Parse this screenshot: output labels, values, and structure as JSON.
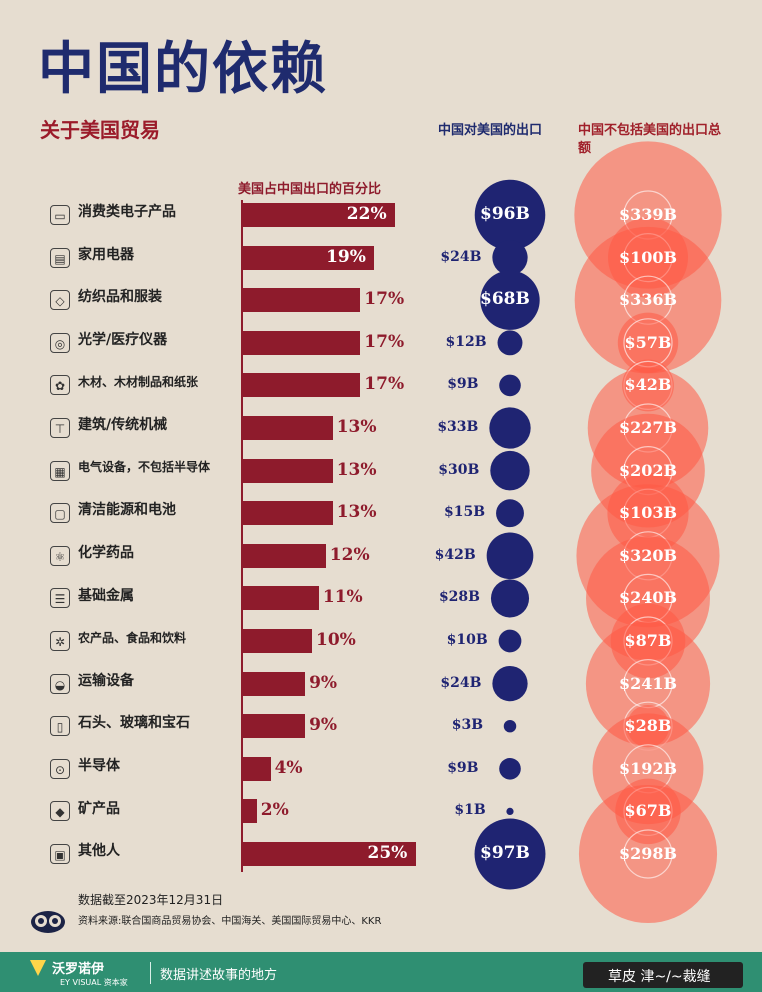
{
  "title": "中国的依赖",
  "subtitle": "关于美国贸易",
  "headers": {
    "bar": "美国占中国出口的百分比",
    "us": "中国对美国的出口",
    "world": "中国不包括美国的出口总额"
  },
  "colors": {
    "bar": "#8e1b2c",
    "us": "#1f2472",
    "world": "#ff5a45",
    "title": "#1f2b6e"
  },
  "chart_data": {
    "type": "bar",
    "title": "中国的依赖",
    "subtitle": "关于美国贸易",
    "value_unit": "%",
    "categories": [
      "消费类电子产品",
      "家用电器",
      "纺织品和服装",
      "光学/医疗仪器",
      "木材、木材制品和纸张",
      "建筑/传统机械",
      "电气设备，不包括半导体",
      "清洁能源和电池",
      "化学药品",
      "基础金属",
      "农产品、食品和饮料",
      "运输设备",
      "石头、玻璃和宝石",
      "半导体",
      "矿产品",
      "其他人"
    ],
    "icons": [
      "monitor-icon",
      "appliance-icon",
      "shirt-icon",
      "microscope-icon",
      "wood-icon",
      "crane-icon",
      "circuit-icon",
      "battery-icon",
      "atom-icon",
      "metal-bars-icon",
      "wheat-icon",
      "car-icon",
      "glass-icon",
      "chip-icon",
      "rock-icon",
      "box-icon"
    ],
    "series": [
      {
        "name": "美国占中国出口的百分比",
        "values": [
          22,
          19,
          17,
          17,
          17,
          13,
          13,
          13,
          12,
          11,
          10,
          9,
          9,
          4,
          2,
          25
        ],
        "labels": [
          "22%",
          "19%",
          "17%",
          "17%",
          "17%",
          "13%",
          "13%",
          "13%",
          "12%",
          "11%",
          "10%",
          "9%",
          "9%",
          "4%",
          "2%",
          "25%"
        ]
      },
      {
        "name": "中国对美国的出口",
        "values": [
          96,
          24,
          68,
          12,
          9,
          33,
          30,
          15,
          42,
          28,
          10,
          24,
          3,
          9,
          1,
          97
        ],
        "labels": [
          "$96B",
          "$24B",
          "$68B",
          "$12B",
          "$9B",
          "$33B",
          "$30B",
          "$15B",
          "$42B",
          "$28B",
          "$10B",
          "$24B",
          "$3B",
          "$9B",
          "$1B",
          "$97B"
        ]
      },
      {
        "name": "中国不包括美国的出口总额",
        "values": [
          339,
          100,
          336,
          57,
          42,
          227,
          202,
          103,
          320,
          240,
          87,
          241,
          28,
          192,
          67,
          298
        ],
        "labels": [
          "$339B",
          "$100B",
          "$336B",
          "$57B",
          "$42B",
          "$227B",
          "$202B",
          "$103B",
          "$320B",
          "$240B",
          "$87B",
          "$241B",
          "$28B",
          "$192B",
          "$67B",
          "$298B"
        ]
      }
    ]
  },
  "notes": {
    "date": "数据截至2023年12月31日",
    "source": "资料来源:联合国商品贸易协会、中国海关、美国国际贸易中心、KKR"
  },
  "footer": {
    "brand": "沃罗诺伊",
    "brand_sub": "EY VISUAL 资本家",
    "slogan": "数据讲述故事的地方",
    "watermark": "草皮  津~/~裁缝"
  }
}
